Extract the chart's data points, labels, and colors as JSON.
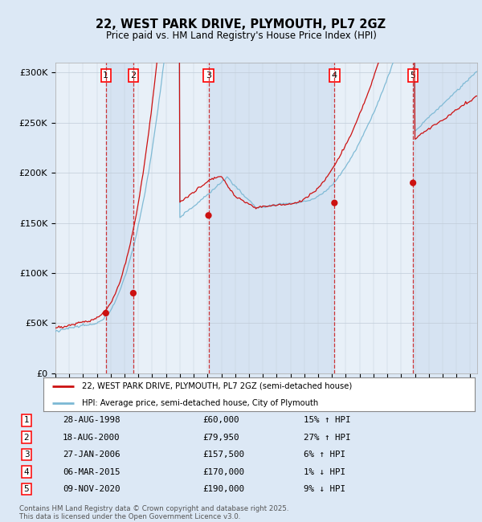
{
  "title_line1": "22, WEST PARK DRIVE, PLYMOUTH, PL7 2GZ",
  "title_line2": "Price paid vs. HM Land Registry's House Price Index (HPI)",
  "legend_line1": "22, WEST PARK DRIVE, PLYMOUTH, PL7 2GZ (semi-detached house)",
  "legend_line2": "HPI: Average price, semi-detached house, City of Plymouth",
  "footer": "Contains HM Land Registry data © Crown copyright and database right 2025.\nThis data is licensed under the Open Government Licence v3.0.",
  "sales": [
    {
      "label": "1",
      "date": "28-AUG-1998",
      "price": 60000,
      "pct": "15%",
      "dir": "↑",
      "x_year": 1998.65
    },
    {
      "label": "2",
      "date": "18-AUG-2000",
      "price": 79950,
      "pct": "27%",
      "dir": "↑",
      "x_year": 2000.63
    },
    {
      "label": "3",
      "date": "27-JAN-2006",
      "price": 157500,
      "pct": "6%",
      "dir": "↑",
      "x_year": 2006.07
    },
    {
      "label": "4",
      "date": "06-MAR-2015",
      "price": 170000,
      "pct": "1%",
      "dir": "↓",
      "x_year": 2015.18
    },
    {
      "label": "5",
      "date": "09-NOV-2020",
      "price": 190000,
      "pct": "9%",
      "dir": "↓",
      "x_year": 2020.86
    }
  ],
  "hpi_color": "#7bb8d4",
  "price_color": "#cc1111",
  "sale_dot_color": "#cc1111",
  "background_color": "#dce8f5",
  "plot_bg": "#e8f0f8",
  "vline_color": "#cc2222",
  "shade_color": "#c5d8ee",
  "ylim": [
    0,
    300000
  ],
  "xlim_start": 1995,
  "xlim_end": 2025.5
}
